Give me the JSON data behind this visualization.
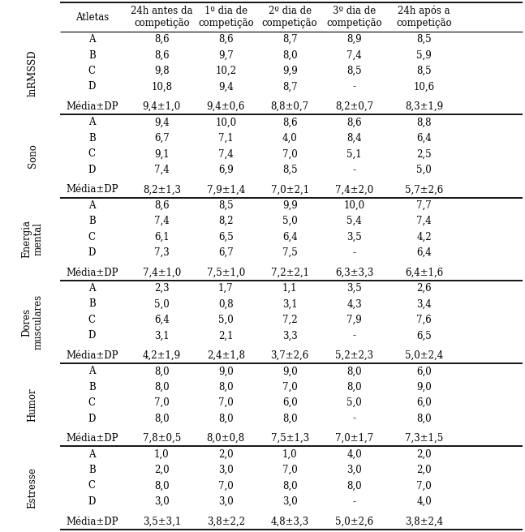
{
  "col_headers": [
    "Atletas",
    "24h antes da\ncompetição",
    "1º dia de\ncompetição",
    "2º dia de\ncompetição",
    "3º dia de\ncompetição",
    "24h após a\ncompetição"
  ],
  "sections": [
    {
      "row_label": "lnRMSSD",
      "rows": [
        [
          "A",
          "8,6",
          "8,6",
          "8,7",
          "8,9",
          "8,5"
        ],
        [
          "B",
          "8,6",
          "9,7",
          "8,0",
          "7,4",
          "5,9"
        ],
        [
          "C",
          "9,8",
          "10,2",
          "9,9",
          "8,5",
          "8,5"
        ],
        [
          "D",
          "10,8",
          "9,4",
          "8,7",
          "-",
          "10,6"
        ]
      ],
      "mean_row": [
        "Média±DP",
        "9,4±1,0",
        "9,4±0,6",
        "8,8±0,7",
        "8,2±0,7",
        "8,3±1,9"
      ]
    },
    {
      "row_label": "Sono",
      "rows": [
        [
          "A",
          "9,4",
          "10,0",
          "8,6",
          "8,6",
          "8,8"
        ],
        [
          "B",
          "6,7",
          "7,1",
          "4,0",
          "8,4",
          "6,4"
        ],
        [
          "C",
          "9,1",
          "7,4",
          "7,0",
          "5,1",
          "2,5"
        ],
        [
          "D",
          "7,4",
          "6,9",
          "8,5",
          "-",
          "5,0"
        ]
      ],
      "mean_row": [
        "Média±DP",
        "8,2±1,3",
        "7,9±1,4",
        "7,0±2,1",
        "7,4±2,0",
        "5,7±2,6"
      ]
    },
    {
      "row_label": "Energia\nmental",
      "rows": [
        [
          "A",
          "8,6",
          "8,5",
          "9,9",
          "10,0",
          "7,7"
        ],
        [
          "B",
          "7,4",
          "8,2",
          "5,0",
          "5,4",
          "7,4"
        ],
        [
          "C",
          "6,1",
          "6,5",
          "6,4",
          "3,5",
          "4,2"
        ],
        [
          "D",
          "7,3",
          "6,7",
          "7,5",
          "-",
          "6,4"
        ]
      ],
      "mean_row": [
        "Média±DP",
        "7,4±1,0",
        "7,5±1,0",
        "7,2±2,1",
        "6,3±3,3",
        "6,4±1,6"
      ]
    },
    {
      "row_label": "Dores\nmusculares",
      "rows": [
        [
          "A",
          "2,3",
          "1,7",
          "1,1",
          "3,5",
          "2,6"
        ],
        [
          "B",
          "5,0",
          "0,8",
          "3,1",
          "4,3",
          "3,4"
        ],
        [
          "C",
          "6,4",
          "5,0",
          "7,2",
          "7,9",
          "7,6"
        ],
        [
          "D",
          "3,1",
          "2,1",
          "3,3",
          "-",
          "6,5"
        ]
      ],
      "mean_row": [
        "Média±DP",
        "4,2±1,9",
        "2,4±1,8",
        "3,7±2,6",
        "5,2±2,3",
        "5,0±2,4"
      ]
    },
    {
      "row_label": "Humor",
      "rows": [
        [
          "A",
          "8,0",
          "9,0",
          "9,0",
          "8,0",
          "6,0"
        ],
        [
          "B",
          "8,0",
          "8,0",
          "7,0",
          "8,0",
          "9,0"
        ],
        [
          "C",
          "7,0",
          "7,0",
          "6,0",
          "5,0",
          "6,0"
        ],
        [
          "D",
          "8,0",
          "8,0",
          "8,0",
          "-",
          "8,0"
        ]
      ],
      "mean_row": [
        "Média±DP",
        "7,8±0,5",
        "8,0±0,8",
        "7,5±1,3",
        "7,0±1,7",
        "7,3±1,5"
      ]
    },
    {
      "row_label": "Estresse",
      "rows": [
        [
          "A",
          "1,0",
          "2,0",
          "1,0",
          "4,0",
          "2,0"
        ],
        [
          "B",
          "2,0",
          "3,0",
          "7,0",
          "3,0",
          "2,0"
        ],
        [
          "C",
          "8,0",
          "7,0",
          "8,0",
          "8,0",
          "7,0"
        ],
        [
          "D",
          "3,0",
          "3,0",
          "3,0",
          "-",
          "4,0"
        ]
      ],
      "mean_row": [
        "Média±DP",
        "3,5±3,1",
        "3,8±2,2",
        "4,8±3,3",
        "5,0±2,6",
        "3,8±2,4"
      ]
    }
  ],
  "fontsize_header": 8.5,
  "fontsize_data": 8.5,
  "fontsize_mean": 8.5,
  "fontsize_label": 8.5
}
